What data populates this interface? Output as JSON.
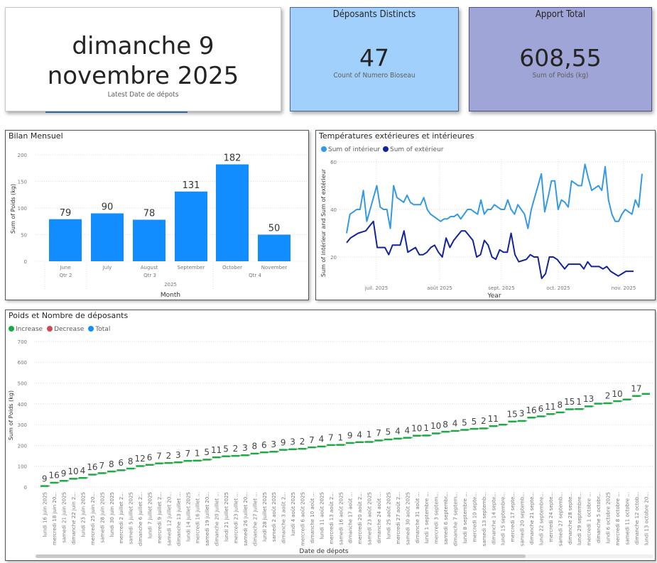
{
  "cards": {
    "latest_date": {
      "value": "dimanche 9 novembre 2025",
      "label": "Latest Date de dépots"
    },
    "depositors": {
      "title": "Déposants Distincts",
      "value": "47",
      "label": "Count of Numero Bioseau",
      "color": "#a0d0fb"
    },
    "total": {
      "title": "Apport Total",
      "value": "608,55",
      "label": "Sum of Poids (kg)",
      "color": "#9fa5d6"
    }
  },
  "chart_data": [
    {
      "type": "bar",
      "title": "Bilan Mensuel",
      "categories": [
        "June",
        "July",
        "August",
        "September",
        "October",
        "November"
      ],
      "quarters": [
        {
          "label": "Qtr 2",
          "span": 1
        },
        {
          "label": "Qtr 3",
          "span": 3
        },
        {
          "label": "Qtr 4",
          "span": 2
        }
      ],
      "year": "2025",
      "values": [
        79,
        90,
        78,
        131,
        182,
        50
      ],
      "xlabel": "Month",
      "ylabel": "Sum of Poids (kg)",
      "yticks": [
        0,
        50,
        100,
        150,
        200
      ],
      "ylim": [
        0,
        200
      ],
      "color": "#118dff"
    },
    {
      "type": "line",
      "title": "Températures extérieures et intérieures",
      "xlabel": "Year",
      "ylabel": "Sum of intérieur and Sum of extérieur",
      "xticks": [
        "juil. 2025",
        "août 2025",
        "sept. 2025",
        "oct. 2025",
        "nov. 2025"
      ],
      "yticks": [
        20,
        40,
        60
      ],
      "ylim": [
        10,
        60
      ],
      "legend_position": "top-left",
      "series": [
        {
          "name": "Sum of intérieur",
          "color": "#3599e3",
          "values": [
            30,
            38,
            39,
            40,
            40,
            48,
            35,
            40,
            45,
            50,
            41,
            40,
            40,
            32,
            50,
            45,
            44,
            43,
            46,
            43,
            42,
            42,
            42,
            45,
            40,
            38,
            37,
            36,
            35,
            36,
            36,
            37,
            37,
            38,
            36,
            38,
            40,
            40,
            39,
            38,
            44,
            38,
            40,
            40,
            42,
            41,
            40,
            40,
            44,
            40,
            38,
            42,
            40,
            38,
            32,
            40,
            45,
            50,
            55,
            39,
            45,
            52,
            52,
            40,
            44,
            43,
            41,
            52,
            51,
            50,
            50,
            59,
            53,
            48,
            49,
            50,
            48,
            58,
            44,
            38,
            35,
            35,
            38,
            40,
            39,
            38,
            44,
            41,
            55
          ]
        },
        {
          "name": "Sum of extérieur",
          "color": "#12239e",
          "values": [
            26,
            28,
            29,
            30,
            30.5,
            31,
            33,
            35,
            24,
            24,
            24,
            21,
            25,
            25,
            25,
            31,
            22,
            23,
            24,
            21,
            21,
            22,
            24,
            25,
            22,
            20,
            28,
            24,
            27,
            29,
            31,
            31,
            29,
            27,
            20,
            21,
            27,
            25,
            20,
            19,
            23,
            22,
            22,
            30,
            21,
            18,
            18.5,
            19,
            21,
            20,
            20,
            11,
            13,
            20,
            20,
            19,
            17,
            15,
            17,
            17,
            17,
            17,
            15,
            18,
            16,
            16,
            16,
            15,
            16,
            14,
            13,
            12,
            13,
            14,
            14,
            14
          ]
        }
      ]
    },
    {
      "type": "waterfall",
      "title": "Poids et Nombre de déposants",
      "legend": [
        {
          "name": "Increase",
          "color": "#1aab40"
        },
        {
          "name": "Decrease",
          "color": "#d64550"
        },
        {
          "name": "Total",
          "color": "#118dff"
        }
      ],
      "xlabel": "Date de dépots",
      "ylabel": "Sum of Poids (kg)",
      "yticks": [
        0,
        100,
        200,
        300,
        400,
        500,
        600,
        700
      ],
      "ylim": [
        0,
        700
      ],
      "categories": [
        "lundi 16 juin 2025",
        "mercredi 18 juin 20...",
        "samedi 21 juin 2025",
        "dimanche 22 juin 2...",
        "lundi 23 juin 2025",
        "mercredi 25 juin 20...",
        "samedi 28 juin 2025",
        "lundi 30 juin 2025",
        "mercredi 2 juillet 2...",
        "samedi 5 juillet 2025",
        "dimanche 6 juillet 2...",
        "lundi 7 juillet 2025",
        "mercredi 9 juillet 2...",
        "samedi 12 juillet 20...",
        "dimanche 13 juillet ...",
        "lundi 14 juillet 2025",
        "mercredi 16 juillet ...",
        "samedi 19 juillet 20...",
        "dimanche 20 juillet ...",
        "lundi 21 juillet 2025",
        "mercredi 23 juillet ...",
        "samedi 26 juillet 20...",
        "dimanche 27 juillet ...",
        "lundi 28 juillet 2025",
        "samedi 2 août 2025",
        "dimanche 3 août 2...",
        "lundi 4 août 2025",
        "mercredi 6 août 2025",
        "dimanche 10 août ...",
        "lundi 11 août 2025",
        "mercredi 13 août 2...",
        "samedi 16 août 2025",
        "dimanche 17 août ...",
        "mercredi 20 août 2...",
        "samedi 23 août 2025",
        "dimanche 24 août ...",
        "lundi 25 août 2025",
        "mercredi 27 août 2...",
        "samedi 30 août 2025",
        "dimanche 31 août ...",
        "lundi 1 septembre ...",
        "mercredi 3 septem...",
        "samedi 6 septembr...",
        "dimanche 7 septem...",
        "lundi 8 septembre ...",
        "mercredi 10 septe...",
        "samedi 13 septemb...",
        "dimanche 14 septe...",
        "lundi 15 septembre...",
        "mercredi 17 septe...",
        "samedi 20 septemb...",
        "dimanche 21 septe...",
        "lundi 22 septembre...",
        "mercredi 24 septe...",
        "samedi 27 septemb...",
        "dimanche 28 septe...",
        "lundi 29 septembre...",
        "mercredi 1 octobre ...",
        "dimanche 5 octobr...",
        "lundi 6 octobre 2025",
        "mercredi 8 octobre ...",
        "samedi 11 octobre ...",
        "dimanche 12 octob...",
        "lundi 13 octobre 20..."
      ],
      "values": [
        9,
        16,
        9,
        10,
        4,
        16,
        7,
        8,
        6,
        8,
        12,
        6,
        7,
        2,
        3,
        7,
        1,
        5,
        11,
        5,
        2,
        3,
        8,
        6,
        3,
        9,
        3,
        2,
        7,
        4,
        7,
        1,
        9,
        4,
        1,
        7,
        5,
        4,
        4,
        10,
        1,
        10,
        8,
        4,
        5,
        5,
        2,
        11,
        7,
        15,
        3,
        16,
        6,
        11,
        8,
        15,
        1,
        13,
        13,
        2,
        10,
        8,
        17,
        10
      ],
      "hidden_label_indices": [
        48,
        58,
        61,
        63
      ]
    }
  ]
}
